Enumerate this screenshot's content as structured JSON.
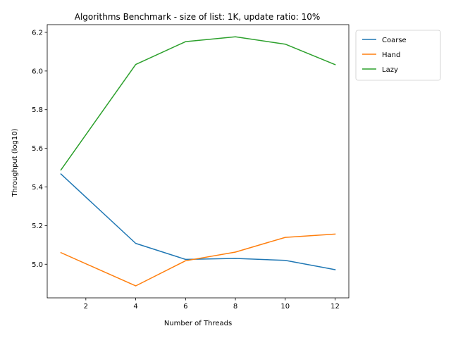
{
  "chart_data": {
    "type": "line",
    "title": "Algorithms Benchmark - size of list: 1K, update ratio: 10%",
    "xlabel": "Number of Threads",
    "ylabel": "Throughput (log10)",
    "x": [
      1,
      4,
      6,
      8,
      10,
      12
    ],
    "xlim": [
      0.45,
      12.55
    ],
    "ylim": [
      4.826,
      6.24
    ],
    "xticks": [
      2,
      4,
      6,
      8,
      10,
      12
    ],
    "xtick_labels": [
      "2",
      "4",
      "6",
      "8",
      "10",
      "12"
    ],
    "yticks": [
      5.0,
      5.2,
      5.4,
      5.6,
      5.8,
      6.0,
      6.2
    ],
    "ytick_labels": [
      "5.0",
      "5.2",
      "5.4",
      "5.6",
      "5.8",
      "6.0",
      "6.2"
    ],
    "grid": false,
    "legend_position": "outside-top-right",
    "series": [
      {
        "name": "Coarse",
        "color": "#1f77b4",
        "values": [
          5.467,
          5.108,
          5.025,
          5.03,
          5.02,
          4.972
        ]
      },
      {
        "name": "Hand",
        "color": "#ff7f0e",
        "values": [
          5.06,
          4.888,
          5.018,
          5.063,
          5.139,
          5.156
        ]
      },
      {
        "name": "Lazy",
        "color": "#2ca02c",
        "values": [
          5.488,
          6.034,
          6.152,
          6.177,
          6.139,
          6.033
        ]
      }
    ]
  }
}
